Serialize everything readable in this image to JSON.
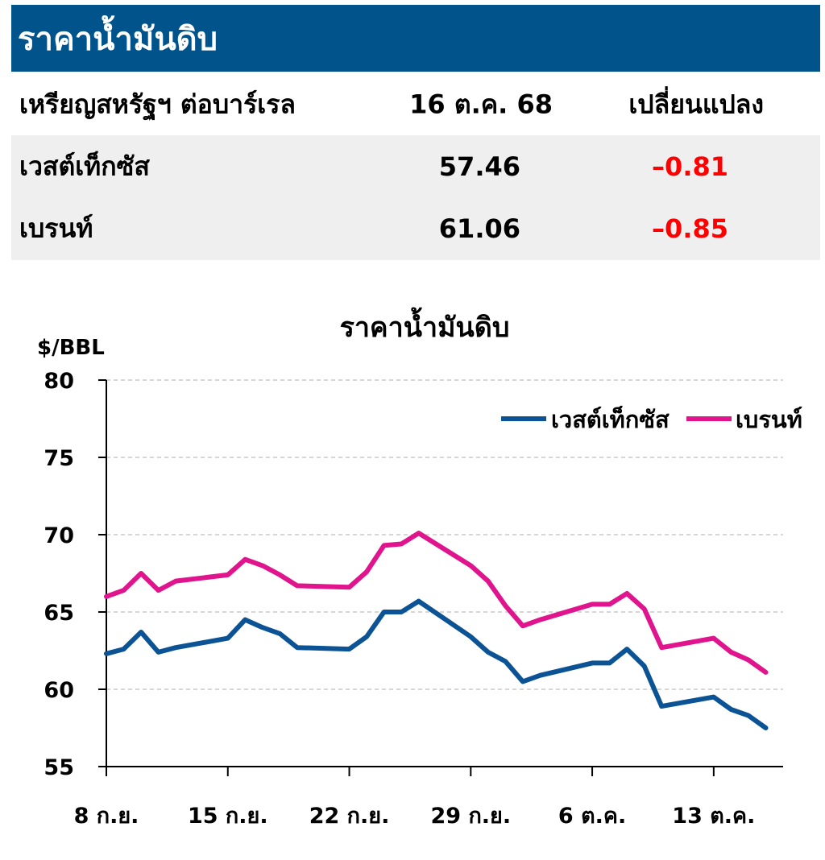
{
  "table": {
    "title": "ราคาน้ำมันดิบ",
    "headers": [
      "เหรียญสหรัฐฯ ต่อบาร์เรล",
      "16 ต.ค. 68",
      "เปลี่ยนแปลง"
    ],
    "rows": [
      {
        "name": "เวสต์เท็กซัส",
        "price": "57.46",
        "change": "–0.81"
      },
      {
        "name": "เบรนท์",
        "price": "61.06",
        "change": "–0.85"
      }
    ],
    "negative_color": "#ff0000",
    "header_color": "#00538b"
  },
  "chart_data": {
    "type": "line",
    "title": "ราคาน้ำมันดิบ",
    "ylabel": "$/BBL",
    "ylim": [
      55,
      80
    ],
    "yticks": [
      55,
      60,
      65,
      70,
      75,
      80
    ],
    "x_tick_labels": [
      "8 ก.ย.",
      "15 ก.ย.",
      "22 ก.ย.",
      "29 ก.ย.",
      "6 ต.ค.",
      "13 ต.ค."
    ],
    "x_range": [
      "2025-09-08",
      "2025-10-17"
    ],
    "legend_position": "top-right",
    "grid": true,
    "series": [
      {
        "name": "เวสต์เท็กซัส",
        "color": "#0b5394",
        "points": [
          [
            "2025-09-08",
            62.3
          ],
          [
            "2025-09-09",
            62.6
          ],
          [
            "2025-09-10",
            63.7
          ],
          [
            "2025-09-11",
            62.4
          ],
          [
            "2025-09-12",
            62.7
          ],
          [
            "2025-09-15",
            63.3
          ],
          [
            "2025-09-16",
            64.5
          ],
          [
            "2025-09-17",
            64.0
          ],
          [
            "2025-09-18",
            63.6
          ],
          [
            "2025-09-19",
            62.7
          ],
          [
            "2025-09-22",
            62.6
          ],
          [
            "2025-09-23",
            63.4
          ],
          [
            "2025-09-24",
            65.0
          ],
          [
            "2025-09-25",
            65.0
          ],
          [
            "2025-09-26",
            65.7
          ],
          [
            "2025-09-29",
            63.4
          ],
          [
            "2025-09-30",
            62.4
          ],
          [
            "2025-10-01",
            61.8
          ],
          [
            "2025-10-02",
            60.5
          ],
          [
            "2025-10-03",
            60.9
          ],
          [
            "2025-10-06",
            61.7
          ],
          [
            "2025-10-07",
            61.7
          ],
          [
            "2025-10-08",
            62.6
          ],
          [
            "2025-10-09",
            61.5
          ],
          [
            "2025-10-10",
            58.9
          ],
          [
            "2025-10-13",
            59.5
          ],
          [
            "2025-10-14",
            58.7
          ],
          [
            "2025-10-15",
            58.3
          ],
          [
            "2025-10-16",
            57.5
          ]
        ]
      },
      {
        "name": "เบรนท์",
        "color": "#e0148c",
        "points": [
          [
            "2025-09-08",
            66.0
          ],
          [
            "2025-09-09",
            66.4
          ],
          [
            "2025-09-10",
            67.5
          ],
          [
            "2025-09-11",
            66.4
          ],
          [
            "2025-09-12",
            67.0
          ],
          [
            "2025-09-15",
            67.4
          ],
          [
            "2025-09-16",
            68.4
          ],
          [
            "2025-09-17",
            68.0
          ],
          [
            "2025-09-18",
            67.4
          ],
          [
            "2025-09-19",
            66.7
          ],
          [
            "2025-09-22",
            66.6
          ],
          [
            "2025-09-23",
            67.6
          ],
          [
            "2025-09-24",
            69.3
          ],
          [
            "2025-09-25",
            69.4
          ],
          [
            "2025-09-26",
            70.1
          ],
          [
            "2025-09-29",
            68.0
          ],
          [
            "2025-09-30",
            67.0
          ],
          [
            "2025-10-01",
            65.4
          ],
          [
            "2025-10-02",
            64.1
          ],
          [
            "2025-10-03",
            64.5
          ],
          [
            "2025-10-06",
            65.5
          ],
          [
            "2025-10-07",
            65.5
          ],
          [
            "2025-10-08",
            66.2
          ],
          [
            "2025-10-09",
            65.2
          ],
          [
            "2025-10-10",
            62.7
          ],
          [
            "2025-10-13",
            63.3
          ],
          [
            "2025-10-14",
            62.4
          ],
          [
            "2025-10-15",
            61.9
          ],
          [
            "2025-10-16",
            61.1
          ]
        ]
      }
    ]
  }
}
